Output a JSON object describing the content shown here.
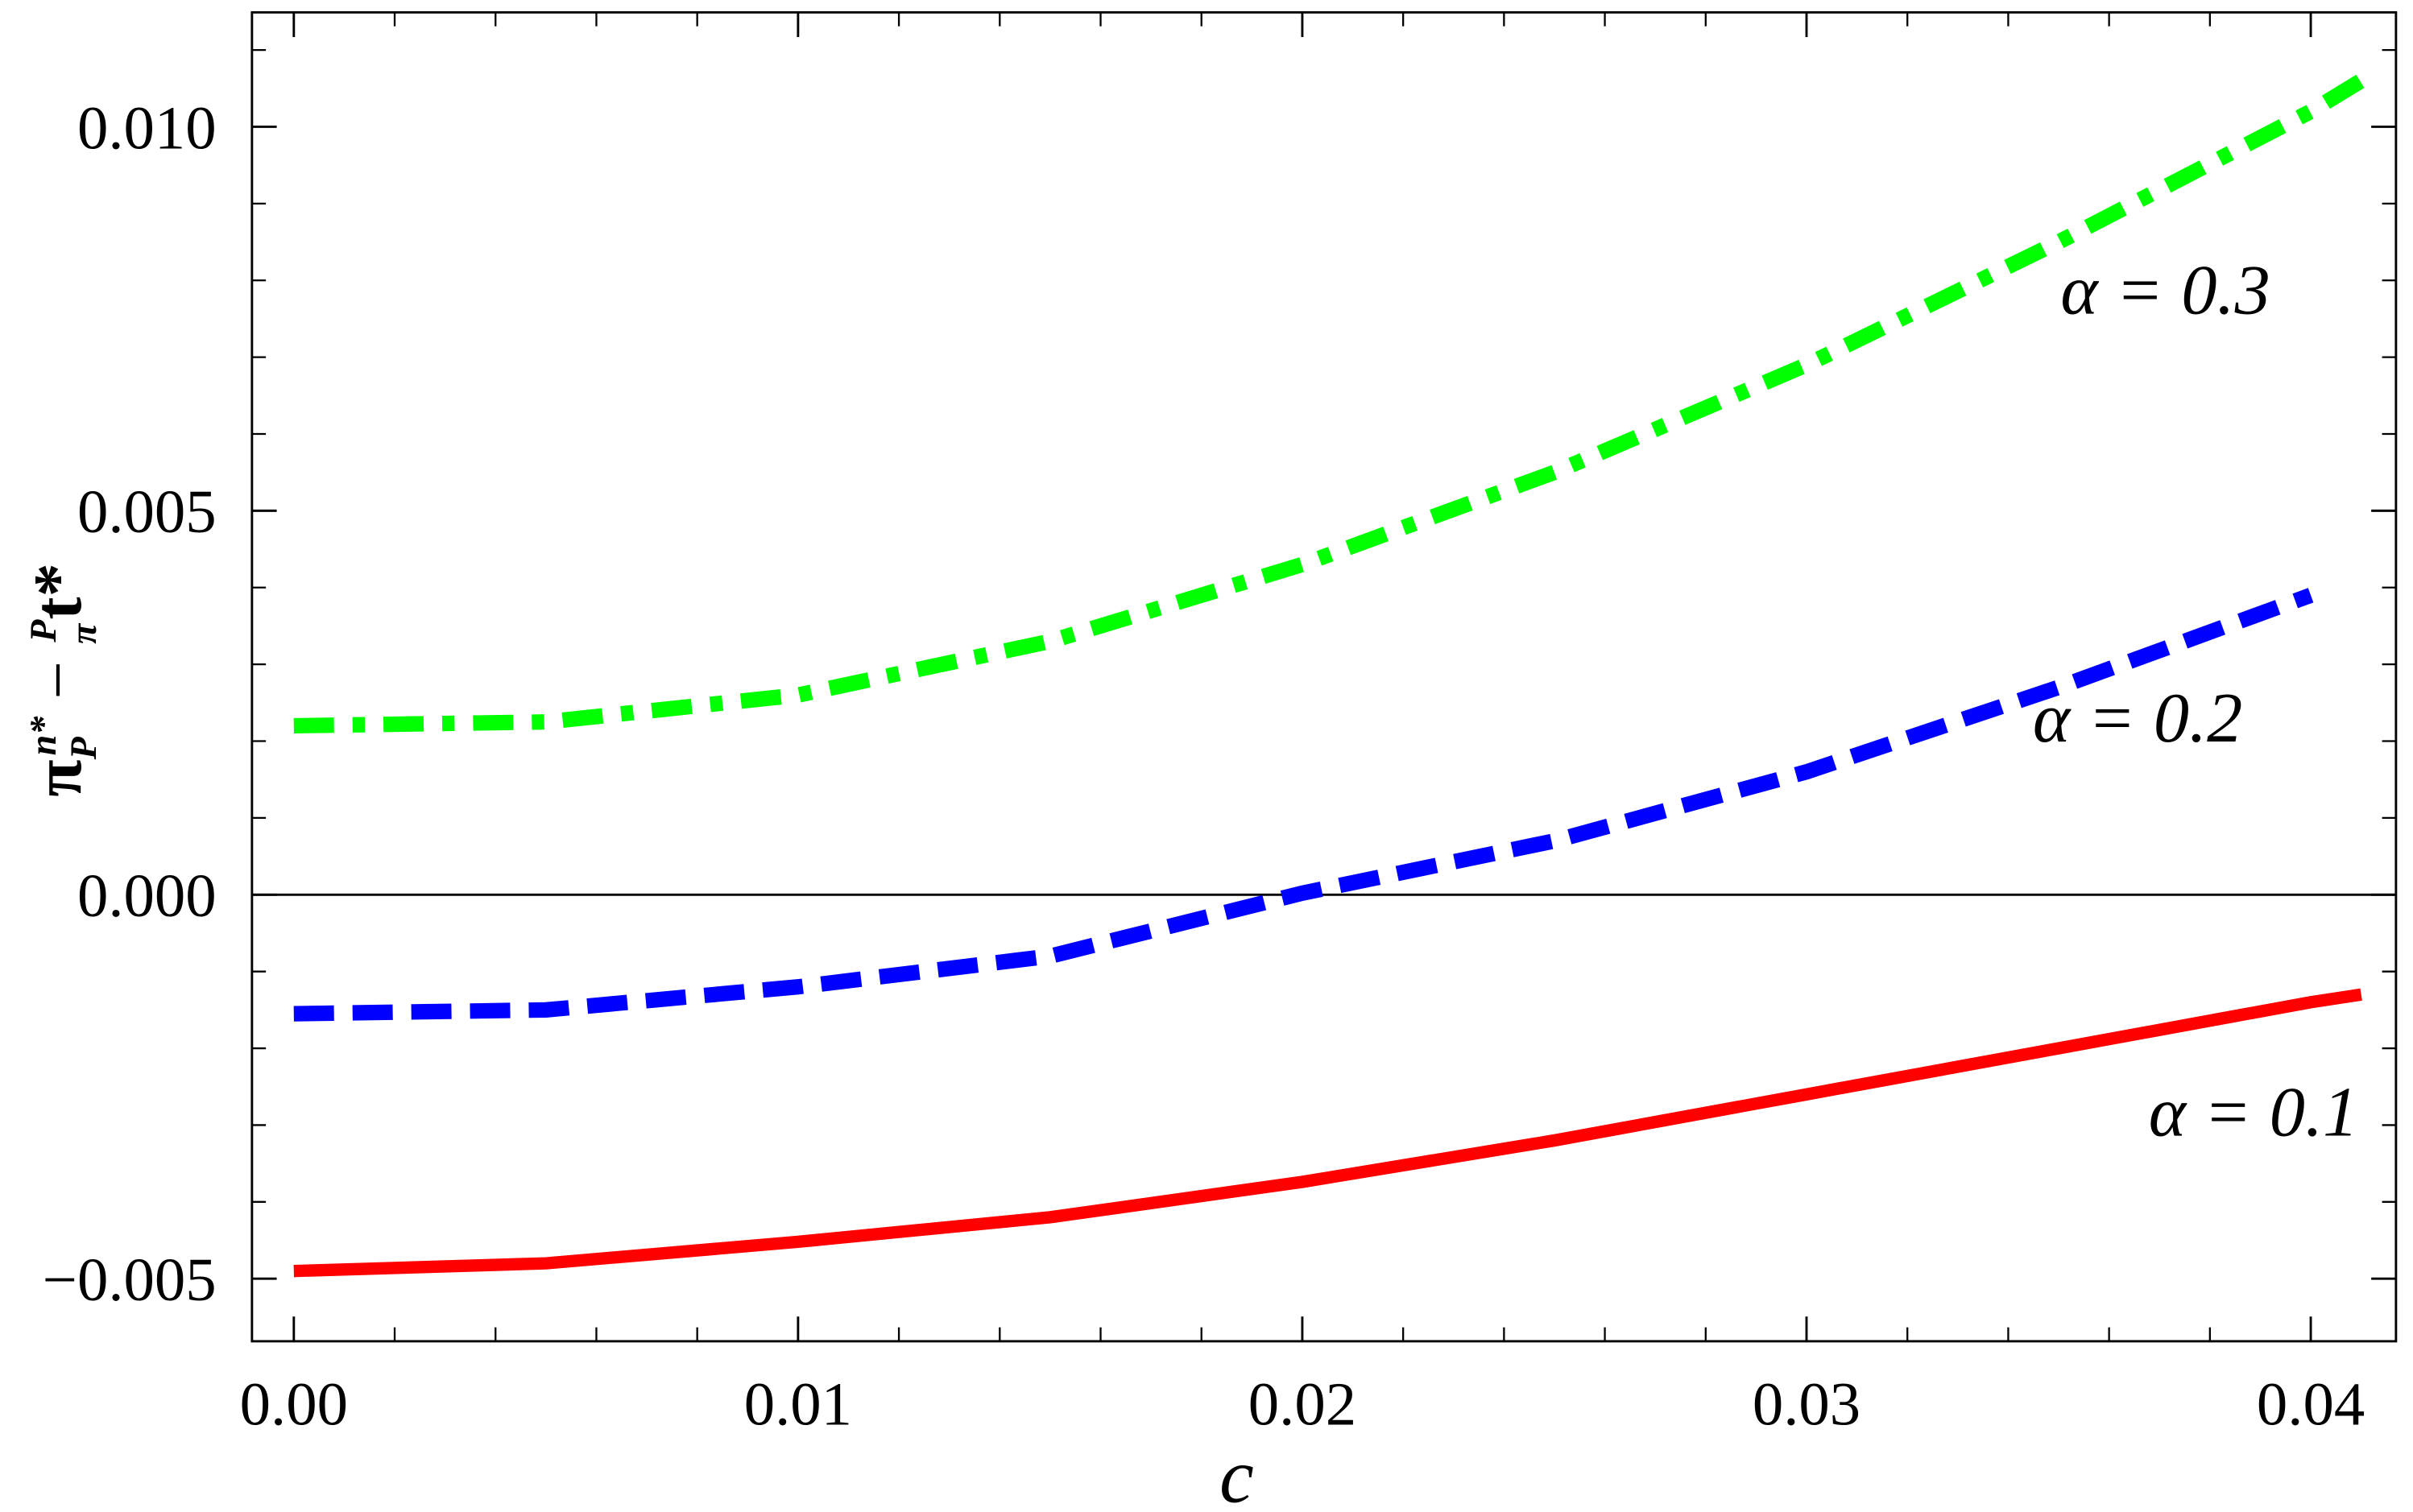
{
  "chart_data": {
    "type": "line",
    "x_label": "c",
    "y_label": {
      "parts": [
        "π",
        "P",
        "n*",
        " − ",
        "π",
        "P",
        "t*"
      ]
    },
    "x": [
      0,
      0.005,
      0.01,
      0.015,
      0.02,
      0.025,
      0.03,
      0.035,
      0.04,
      0.041
    ],
    "series": [
      {
        "name": "α = 0.1",
        "color": "#ff0000",
        "dash": "solid",
        "values": [
          -0.0049,
          -0.0048,
          -0.00452,
          -0.0042,
          -0.00374,
          -0.0032,
          -0.0026,
          -0.002,
          -0.0014,
          -0.0013
        ]
      },
      {
        "name": "α = 0.2",
        "color": "#0000ff",
        "dash": "dashed",
        "values": [
          -0.00155,
          -0.0015,
          -0.0012,
          -0.0008,
          2e-05,
          0.0007,
          0.0016,
          0.0027,
          0.0039,
          null
        ]
      },
      {
        "name": "α = 0.3",
        "color": "#00ff00",
        "dash": "dotdash",
        "values": [
          0.0022,
          0.00225,
          0.0026,
          0.0033,
          0.0043,
          0.0055,
          0.0069,
          0.0085,
          0.0102,
          0.0106
        ]
      }
    ],
    "xlim": [
      -0.00083,
      0.04169
    ],
    "ylim": [
      -0.005815,
      0.01149
    ],
    "xticks": [
      {
        "value": 0,
        "label": "0.00"
      },
      0.01,
      0.02,
      0.03,
      0.04
    ],
    "yticks": [
      {
        "value": -0.005,
        "label": "−0.005"
      },
      {
        "value": 0,
        "label": "0.000"
      },
      0.005,
      {
        "value": 0.01,
        "label": "0.010"
      }
    ],
    "xminorticks": [
      0.002,
      0.004,
      0.006,
      0.008,
      0.012,
      0.014,
      0.016,
      0.018,
      0.022,
      0.024,
      0.026,
      0.028,
      0.032,
      0.034,
      0.036,
      0.038
    ],
    "yminorticks": [
      -0.004,
      -0.003,
      -0.002,
      -0.001,
      0.001,
      0.002,
      0.003,
      0.004,
      0.006,
      0.007,
      0.008,
      0.009,
      0.011
    ],
    "zero_line": true,
    "frame_ticks_all_sides": true
  }
}
